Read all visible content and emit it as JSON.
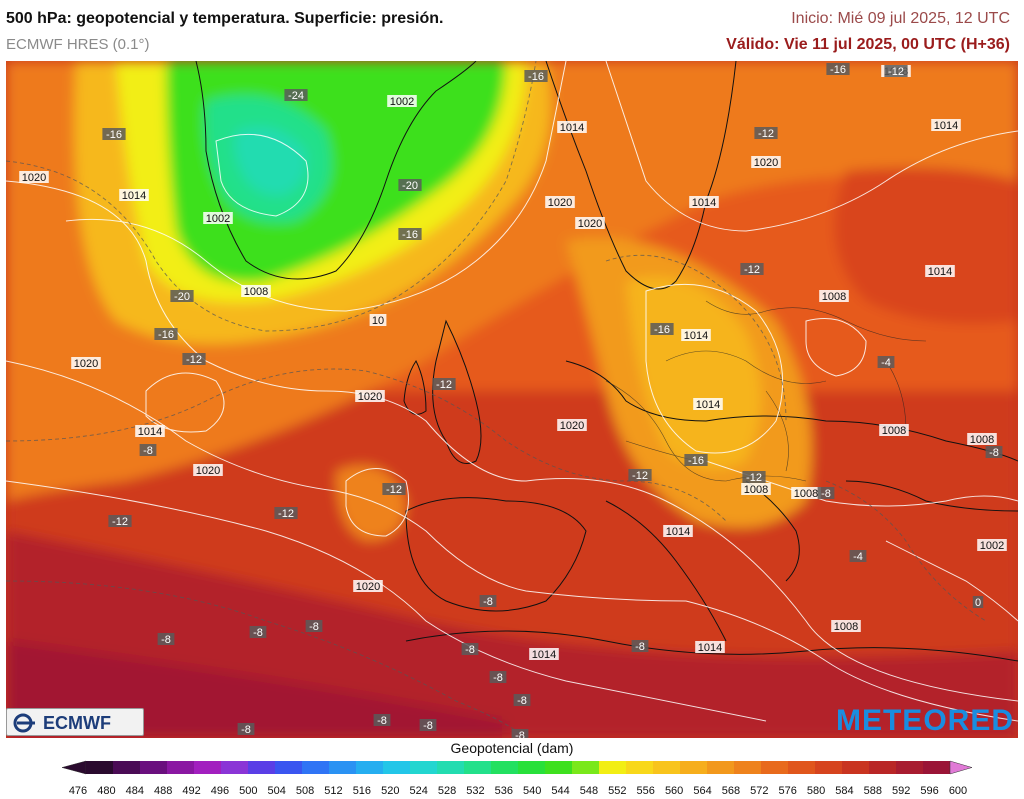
{
  "header": {
    "title": "500 hPa: geopotencial y temperatura. Superficie: presión.",
    "subtitle": "ECMWF HRES (0.1°)",
    "run": "Inicio: Mié 09 jul 2025, 12 UTC",
    "valid": "Válido: Vie 11 jul 2025, 00 UTC (H+36)"
  },
  "logos": {
    "left": "ECMWF",
    "right": "METEORED"
  },
  "colorbar": {
    "title": "Geopotencial (dam)",
    "ticks": [
      "476",
      "480",
      "484",
      "488",
      "492",
      "496",
      "500",
      "504",
      "508",
      "512",
      "516",
      "520",
      "524",
      "528",
      "532",
      "536",
      "540",
      "544",
      "548",
      "552",
      "556",
      "560",
      "564",
      "568",
      "572",
      "576",
      "580",
      "584",
      "588",
      "592",
      "596",
      "600"
    ],
    "colors": [
      "#2a0a2e",
      "#4a0b55",
      "#6a0f7e",
      "#8a17a2",
      "#a21fbf",
      "#8a35d6",
      "#5a3ee6",
      "#3a55f0",
      "#2f74f5",
      "#2a92f3",
      "#25aef0",
      "#22c6e8",
      "#22d6d0",
      "#22dcb0",
      "#22e08a",
      "#22e060",
      "#28e03a",
      "#3ee01e",
      "#7ae81a",
      "#f2ee14",
      "#f8d81a",
      "#f8c41c",
      "#f6ae1c",
      "#f2981c",
      "#ee821c",
      "#e86a1c",
      "#e0561c",
      "#d6441e",
      "#c93420",
      "#b92626",
      "#a81c30",
      "#9a1436"
    ],
    "unit_hint": "dam"
  },
  "map": {
    "pressure_labels": [
      {
        "text": "1020"
      },
      {
        "text": "1014"
      },
      {
        "text": "1002"
      },
      {
        "text": "1008"
      },
      {
        "text": "1002"
      },
      {
        "text": "1014"
      },
      {
        "text": "1008"
      },
      {
        "text": "1020"
      },
      {
        "text": "1020"
      },
      {
        "text": "1014"
      },
      {
        "text": "1020"
      },
      {
        "text": "1014"
      },
      {
        "text": "1008"
      },
      {
        "text": "1014"
      },
      {
        "text": "1020"
      },
      {
        "text": "1008"
      },
      {
        "text": "1014"
      },
      {
        "text": "1020"
      },
      {
        "text": "1014"
      },
      {
        "text": "1008"
      },
      {
        "text": "1008"
      },
      {
        "text": "1002"
      },
      {
        "text": "1014"
      },
      {
        "text": "1014"
      },
      {
        "text": "1008"
      },
      {
        "text": "1020"
      },
      {
        "text": "1020"
      },
      {
        "text": "1014"
      },
      {
        "text": "1020"
      },
      {
        "text": "1014"
      },
      {
        "text": "1008"
      },
      {
        "text": "10"
      }
    ],
    "temp_labels": [
      {
        "text": "-16"
      },
      {
        "text": "-24"
      },
      {
        "text": "-16"
      },
      {
        "text": "-12"
      },
      {
        "text": "-16"
      },
      {
        "text": "-12"
      },
      {
        "text": "-20"
      },
      {
        "text": "-16"
      },
      {
        "text": "-20"
      },
      {
        "text": "-16"
      },
      {
        "text": "-12"
      },
      {
        "text": "-12"
      },
      {
        "text": "-12"
      },
      {
        "text": "-16"
      },
      {
        "text": "-12"
      },
      {
        "text": "-8"
      },
      {
        "text": "-12"
      },
      {
        "text": "-12"
      },
      {
        "text": "-16"
      },
      {
        "text": "-12"
      },
      {
        "text": "-12"
      },
      {
        "text": "-8"
      },
      {
        "text": "-8"
      },
      {
        "text": "-8"
      },
      {
        "text": "-8"
      },
      {
        "text": "-8"
      },
      {
        "text": "-4"
      },
      {
        "text": "-8"
      },
      {
        "text": "-8"
      },
      {
        "text": "-8"
      },
      {
        "text": "-8"
      },
      {
        "text": "-8"
      },
      {
        "text": "-4"
      },
      {
        "text": "0"
      },
      {
        "text": "-8"
      },
      {
        "text": "-8"
      },
      {
        "text": "-8"
      },
      {
        "text": "-8"
      }
    ]
  }
}
